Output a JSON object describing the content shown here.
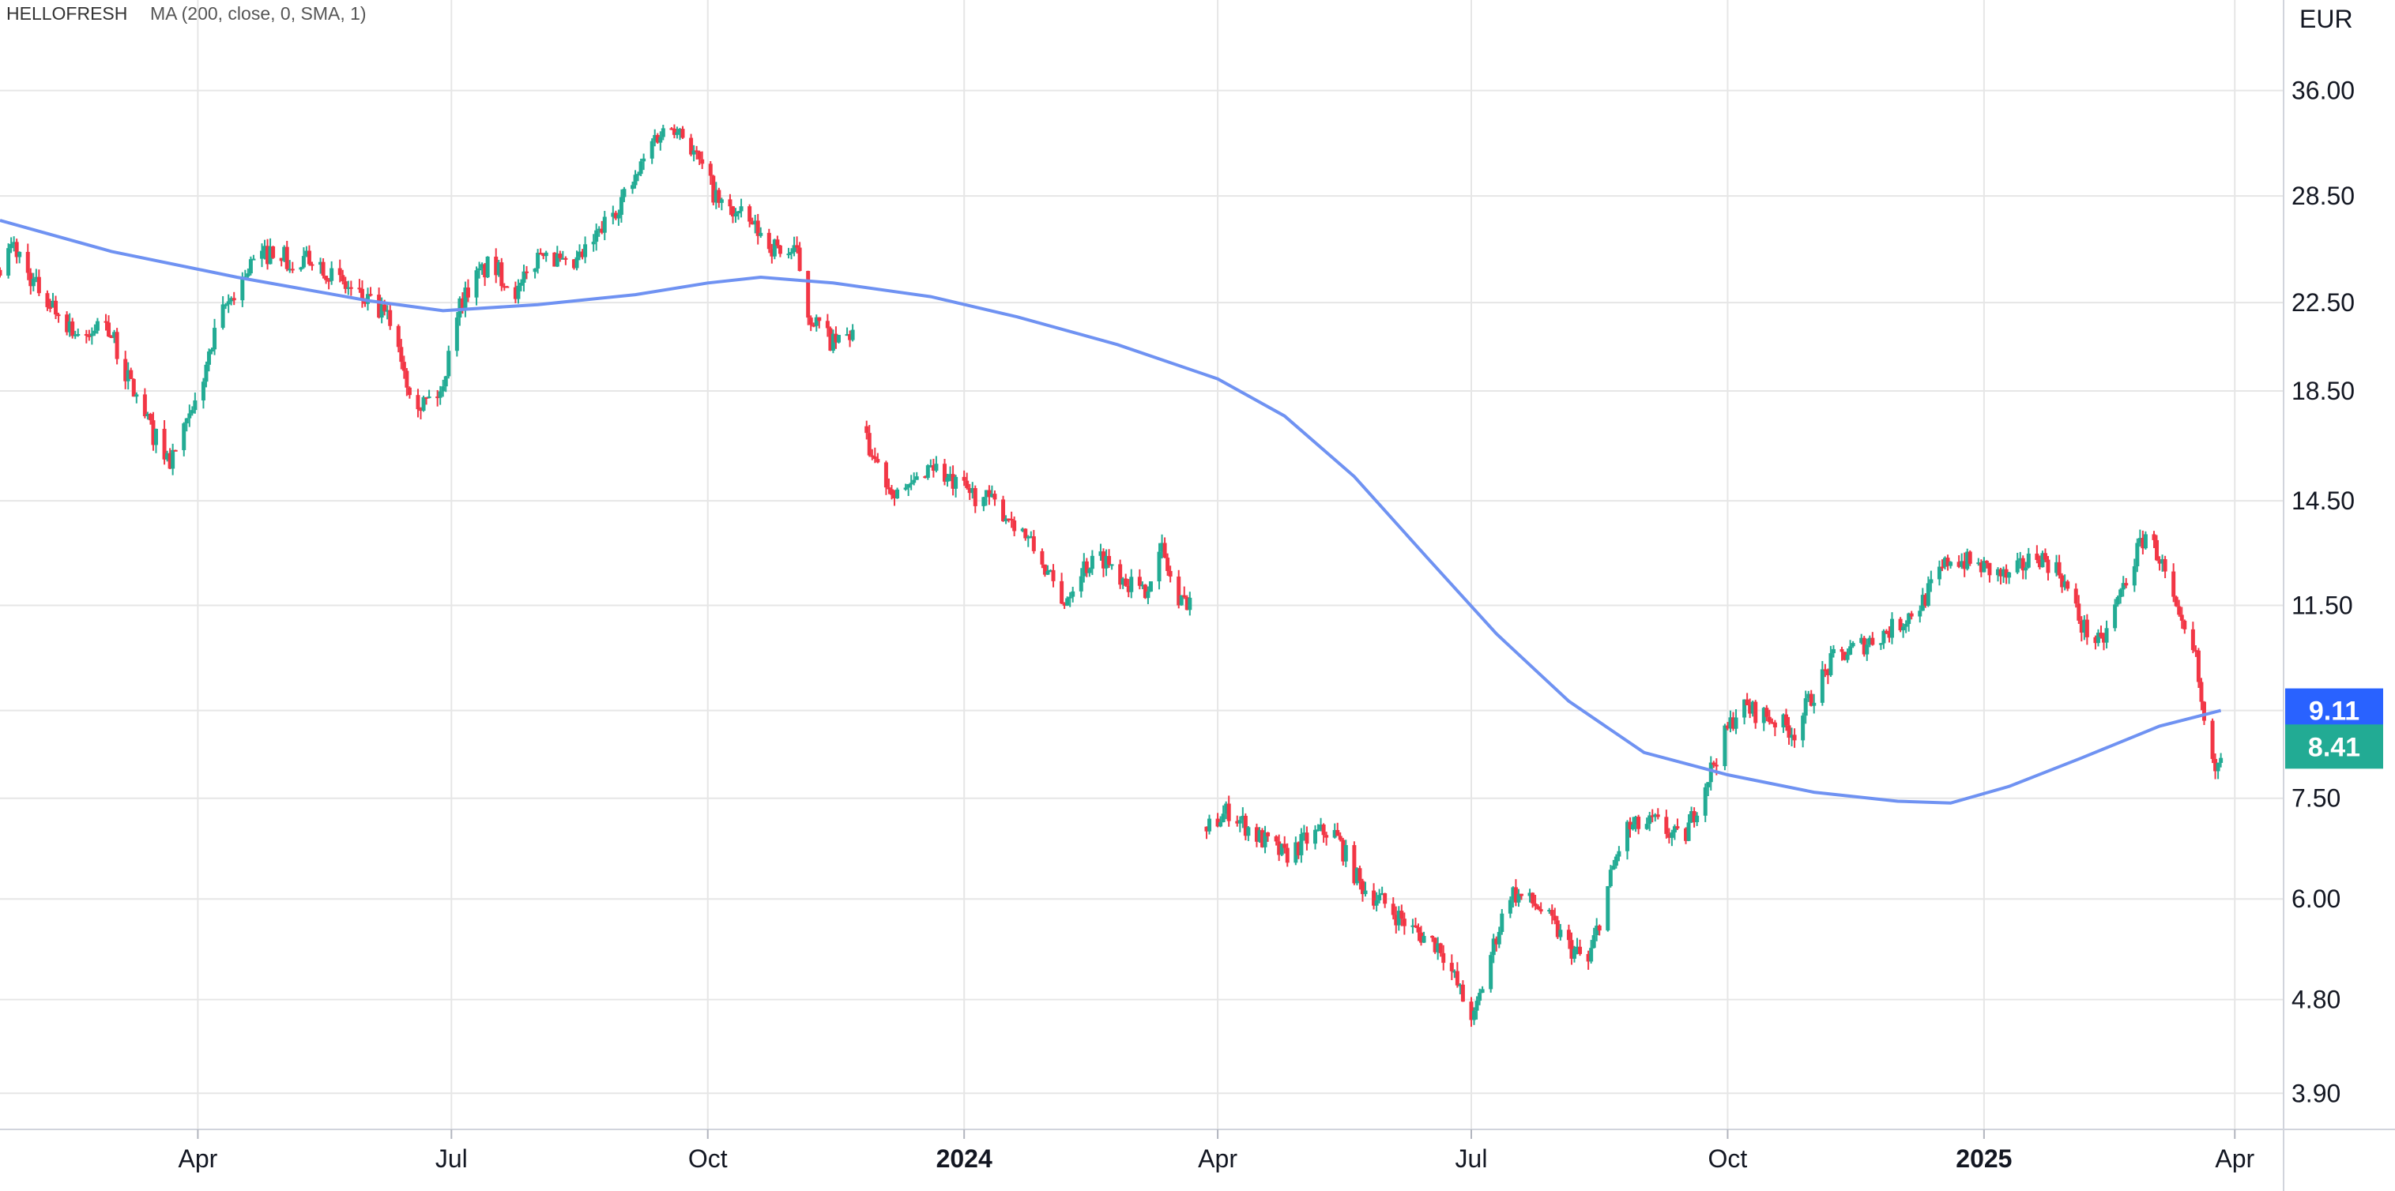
{
  "header": {
    "symbol": "HELLOFRESH",
    "indicator": "MA (200, close, 0, SMA, 1)"
  },
  "currency": "EUR",
  "colors": {
    "up": "#22ab94",
    "down": "#f23645",
    "ma": "#6f92f2",
    "grid": "#e6e6e6",
    "ma_label_bg": "#2962ff",
    "price_label_bg": "#22ab94"
  },
  "price_labels": {
    "ma": "9.11",
    "last": "8.41"
  },
  "chart_data": {
    "type": "candlestick",
    "title": "HELLOFRESH",
    "scale": "log",
    "y_unit": "EUR",
    "y_ticks": [
      "3.90",
      "4.80",
      "6.00",
      "7.50",
      "9.11",
      "11.50",
      "14.50",
      "18.50",
      "22.50",
      "28.50",
      "36.00"
    ],
    "x_ticks": [
      {
        "label": "Apr",
        "date": "2023-04-01"
      },
      {
        "label": "Jul",
        "date": "2023-07-01"
      },
      {
        "label": "Oct",
        "date": "2023-10-01"
      },
      {
        "label": "2024",
        "date": "2024-01-01",
        "bold": true
      },
      {
        "label": "Apr",
        "date": "2024-04-01"
      },
      {
        "label": "Jul",
        "date": "2024-07-01"
      },
      {
        "label": "Oct",
        "date": "2024-10-01"
      },
      {
        "label": "2025",
        "date": "2025-01-01",
        "bold": true
      },
      {
        "label": "Apr",
        "date": "2025-04-01"
      }
    ],
    "x_range": [
      "2023-01-20",
      "2025-04-10"
    ],
    "y_range": [
      3.6,
      44.0
    ],
    "price_path": [
      [
        "2023-01-20",
        24.5
      ],
      [
        "2023-01-25",
        25.5
      ],
      [
        "2023-02-01",
        23.5
      ],
      [
        "2023-02-10",
        22.0
      ],
      [
        "2023-02-20",
        20.5
      ],
      [
        "2023-02-26",
        22.0
      ],
      [
        "2023-03-05",
        19.5
      ],
      [
        "2023-03-15",
        17.0
      ],
      [
        "2023-03-22",
        15.8
      ],
      [
        "2023-03-30",
        17.5
      ],
      [
        "2023-04-10",
        22.0
      ],
      [
        "2023-04-20",
        24.5
      ],
      [
        "2023-04-30",
        25.5
      ],
      [
        "2023-05-05",
        24.0
      ],
      [
        "2023-05-12",
        25.0
      ],
      [
        "2023-05-22",
        23.5
      ],
      [
        "2023-06-01",
        22.5
      ],
      [
        "2023-06-10",
        21.5
      ],
      [
        "2023-06-15",
        19.0
      ],
      [
        "2023-06-20",
        18.0
      ],
      [
        "2023-06-28",
        18.5
      ],
      [
        "2023-07-01",
        21.5
      ],
      [
        "2023-07-08",
        23.5
      ],
      [
        "2023-07-15",
        24.5
      ],
      [
        "2023-07-25",
        23.0
      ],
      [
        "2023-08-03",
        25.5
      ],
      [
        "2023-08-12",
        24.0
      ],
      [
        "2023-08-20",
        25.5
      ],
      [
        "2023-08-28",
        27.5
      ],
      [
        "2023-09-05",
        29.5
      ],
      [
        "2023-09-12",
        32.5
      ],
      [
        "2023-09-20",
        33.5
      ],
      [
        "2023-09-27",
        31.0
      ],
      [
        "2023-10-05",
        28.0
      ],
      [
        "2023-10-15",
        27.0
      ],
      [
        "2023-10-24",
        25.5
      ],
      [
        "2023-11-02",
        25.0
      ],
      [
        "2023-11-06",
        22.0
      ],
      [
        "2023-11-15",
        20.5
      ],
      [
        "2023-11-22",
        21.0
      ],
      [
        "2023-11-27",
        16.5
      ],
      [
        "2023-12-05",
        15.0
      ],
      [
        "2023-12-12",
        14.8
      ],
      [
        "2023-12-20",
        15.8
      ],
      [
        "2023-12-28",
        15.0
      ],
      [
        "2024-01-10",
        14.5
      ],
      [
        "2024-01-20",
        13.8
      ],
      [
        "2024-01-30",
        12.5
      ],
      [
        "2024-02-05",
        11.5
      ],
      [
        "2024-02-12",
        12.5
      ],
      [
        "2024-02-20",
        12.8
      ],
      [
        "2024-02-28",
        12.2
      ],
      [
        "2024-03-05",
        11.8
      ],
      [
        "2024-03-12",
        13.0
      ],
      [
        "2024-03-18",
        11.5
      ],
      [
        "2024-03-25",
        11.9
      ],
      [
        "2024-03-28",
        7.0
      ],
      [
        "2024-04-05",
        7.3
      ],
      [
        "2024-04-15",
        6.9
      ],
      [
        "2024-04-25",
        6.6
      ],
      [
        "2024-05-05",
        6.9
      ],
      [
        "2024-05-12",
        7.0
      ],
      [
        "2024-05-22",
        6.2
      ],
      [
        "2024-06-01",
        5.9
      ],
      [
        "2024-06-10",
        5.6
      ],
      [
        "2024-06-20",
        5.4
      ],
      [
        "2024-06-28",
        4.8
      ],
      [
        "2024-07-02",
        4.6
      ],
      [
        "2024-07-08",
        5.3
      ],
      [
        "2024-07-15",
        6.1
      ],
      [
        "2024-07-25",
        5.9
      ],
      [
        "2024-08-05",
        5.4
      ],
      [
        "2024-08-12",
        5.2
      ],
      [
        "2024-08-18",
        6.0
      ],
      [
        "2024-08-25",
        7.0
      ],
      [
        "2024-09-05",
        7.1
      ],
      [
        "2024-09-15",
        6.8
      ],
      [
        "2024-09-25",
        8.0
      ],
      [
        "2024-10-05",
        9.2
      ],
      [
        "2024-10-15",
        9.0
      ],
      [
        "2024-10-25",
        8.7
      ],
      [
        "2024-11-01",
        9.5
      ],
      [
        "2024-11-08",
        10.2
      ],
      [
        "2024-11-20",
        10.6
      ],
      [
        "2024-12-01",
        11.0
      ],
      [
        "2024-12-10",
        11.6
      ],
      [
        "2024-12-20",
        12.8
      ],
      [
        "2025-01-01",
        12.5
      ],
      [
        "2025-01-10",
        12.2
      ],
      [
        "2025-01-20",
        12.9
      ],
      [
        "2025-01-28",
        12.4
      ],
      [
        "2025-02-05",
        11.0
      ],
      [
        "2025-02-12",
        10.5
      ],
      [
        "2025-02-20",
        12.0
      ],
      [
        "2025-02-28",
        13.5
      ],
      [
        "2025-03-05",
        12.8
      ],
      [
        "2025-03-12",
        11.0
      ],
      [
        "2025-03-18",
        10.2
      ],
      [
        "2025-03-20",
        9.2
      ],
      [
        "2025-03-24",
        8.0
      ],
      [
        "2025-03-27",
        8.41
      ]
    ],
    "gaps": [
      "2023-11-24",
      "2024-03-26"
    ],
    "ma": [
      [
        "2023-01-20",
        27.0
      ],
      [
        "2023-03-01",
        25.2
      ],
      [
        "2023-04-15",
        23.8
      ],
      [
        "2023-06-01",
        22.6
      ],
      [
        "2023-06-28",
        22.1
      ],
      [
        "2023-08-01",
        22.4
      ],
      [
        "2023-09-05",
        22.9
      ],
      [
        "2023-10-01",
        23.5
      ],
      [
        "2023-10-20",
        23.8
      ],
      [
        "2023-11-15",
        23.5
      ],
      [
        "2023-12-20",
        22.8
      ],
      [
        "2024-01-20",
        21.8
      ],
      [
        "2024-02-25",
        20.5
      ],
      [
        "2024-04-01",
        19.0
      ],
      [
        "2024-04-25",
        17.5
      ],
      [
        "2024-05-20",
        15.3
      ],
      [
        "2024-06-15",
        12.8
      ],
      [
        "2024-07-10",
        10.8
      ],
      [
        "2024-08-05",
        9.3
      ],
      [
        "2024-09-01",
        8.3
      ],
      [
        "2024-10-01",
        7.9
      ],
      [
        "2024-11-01",
        7.6
      ],
      [
        "2024-12-01",
        7.45
      ],
      [
        "2024-12-20",
        7.42
      ],
      [
        "2025-01-10",
        7.7
      ],
      [
        "2025-02-05",
        8.2
      ],
      [
        "2025-03-05",
        8.8
      ],
      [
        "2025-03-27",
        9.11
      ]
    ]
  }
}
